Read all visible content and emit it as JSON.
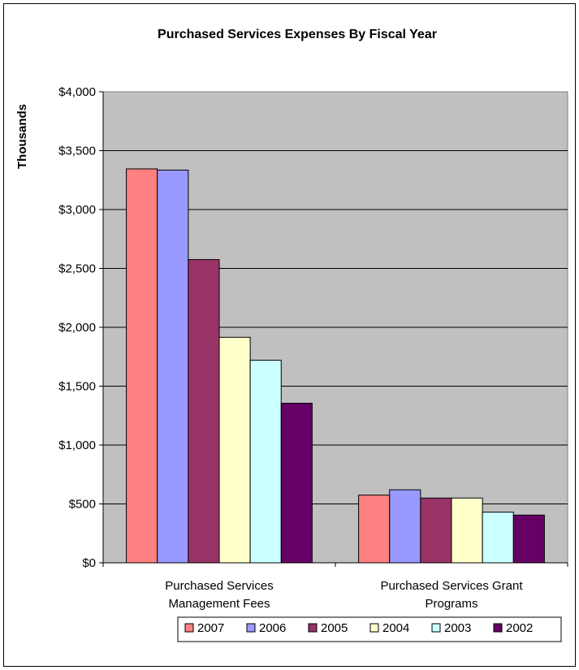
{
  "chart_data": {
    "type": "bar",
    "title": "Purchased Services Expenses By Fiscal Year",
    "xlabel": "",
    "ylabel": "Thousands",
    "ylim": [
      0,
      4000
    ],
    "yticks": [
      "$0",
      "$500",
      "$1,000",
      "$1,500",
      "$2,000",
      "$2,500",
      "$3,000",
      "$3,500",
      "$4,000"
    ],
    "grid": true,
    "legend_position": "bottom",
    "categories": [
      [
        "Purchased Services",
        "Management Fees"
      ],
      [
        "Purchased Services Grant",
        "Programs"
      ]
    ],
    "series": [
      {
        "name": "2007",
        "color": "#ff8080",
        "values": [
          3345,
          575
        ]
      },
      {
        "name": "2006",
        "color": "#9999ff",
        "values": [
          3335,
          620
        ]
      },
      {
        "name": "2005",
        "color": "#993366",
        "values": [
          2575,
          550
        ]
      },
      {
        "name": "2004",
        "color": "#ffffcc",
        "values": [
          1915,
          550
        ]
      },
      {
        "name": "2003",
        "color": "#ccffff",
        "values": [
          1720,
          430
        ]
      },
      {
        "name": "2002",
        "color": "#660066",
        "values": [
          1355,
          405
        ]
      }
    ],
    "plot_background": "#c0c0c0"
  }
}
